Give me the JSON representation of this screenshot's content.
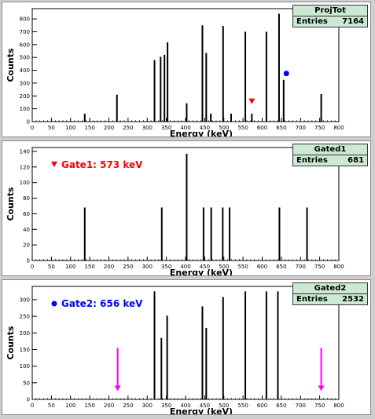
{
  "panels": [
    {
      "stats": {
        "name": "ProjTot",
        "entries_label": "Entries",
        "entries": "7164"
      },
      "annotation": null,
      "chart_data": {
        "type": "bar",
        "xlabel": "Energy (keV)",
        "ylabel": "Counts",
        "xlim": [
          0,
          800
        ],
        "ylim": [
          0,
          880
        ],
        "xticks": [
          0,
          50,
          100,
          150,
          200,
          250,
          300,
          350,
          400,
          450,
          500,
          550,
          600,
          650,
          700,
          750,
          800
        ],
        "yticks": [
          0,
          100,
          200,
          300,
          400,
          500,
          600,
          700,
          800
        ],
        "peaks": [
          {
            "x": 137,
            "y": 62
          },
          {
            "x": 221,
            "y": 210
          },
          {
            "x": 319,
            "y": 480
          },
          {
            "x": 335,
            "y": 505
          },
          {
            "x": 345,
            "y": 520
          },
          {
            "x": 353,
            "y": 618
          },
          {
            "x": 403,
            "y": 143
          },
          {
            "x": 444,
            "y": 750
          },
          {
            "x": 454,
            "y": 535
          },
          {
            "x": 466,
            "y": 62
          },
          {
            "x": 498,
            "y": 745
          },
          {
            "x": 519,
            "y": 62
          },
          {
            "x": 556,
            "y": 700
          },
          {
            "x": 573,
            "y": 62
          },
          {
            "x": 611,
            "y": 700
          },
          {
            "x": 644,
            "y": 840
          },
          {
            "x": 656,
            "y": 325
          },
          {
            "x": 754,
            "y": 215
          }
        ],
        "markers": [
          {
            "type": "triangle-down",
            "x": 573,
            "y": 155,
            "color": "#ff0000"
          },
          {
            "type": "circle",
            "x": 663,
            "y": 375,
            "color": "#0000ff"
          }
        ]
      }
    },
    {
      "stats": {
        "name": "Gated1",
        "entries_label": "Entries",
        "entries": "681"
      },
      "annotation": {
        "text": "Gate1: 573 keV",
        "color": "#ff0000",
        "marker": "triangle-down"
      },
      "chart_data": {
        "type": "bar",
        "xlabel": "Energy (keV)",
        "ylabel": "Counts",
        "xlim": [
          0,
          800
        ],
        "ylim": [
          0,
          145
        ],
        "xticks": [
          0,
          50,
          100,
          150,
          200,
          250,
          300,
          350,
          400,
          450,
          500,
          550,
          600,
          650,
          700,
          750,
          800
        ],
        "yticks": [
          0,
          20,
          40,
          60,
          80,
          100,
          120,
          140
        ],
        "peaks": [
          {
            "x": 137,
            "y": 68
          },
          {
            "x": 338,
            "y": 68
          },
          {
            "x": 403,
            "y": 137
          },
          {
            "x": 447,
            "y": 68
          },
          {
            "x": 467,
            "y": 68
          },
          {
            "x": 497,
            "y": 68
          },
          {
            "x": 515,
            "y": 68
          },
          {
            "x": 645,
            "y": 68
          },
          {
            "x": 717,
            "y": 68
          }
        ],
        "markers": []
      }
    },
    {
      "stats": {
        "name": "Gated2",
        "entries_label": "Entries",
        "entries": "2532"
      },
      "annotation": {
        "text": "Gate2: 656 keV",
        "color": "#0000ff",
        "marker": "circle"
      },
      "chart_data": {
        "type": "bar",
        "xlabel": "Energy (keV)",
        "ylabel": "Counts",
        "xlim": [
          0,
          800
        ],
        "ylim": [
          0,
          340
        ],
        "xticks": [
          0,
          50,
          100,
          150,
          200,
          250,
          300,
          350,
          400,
          450,
          500,
          550,
          600,
          650,
          700,
          750,
          800
        ],
        "yticks": [
          0,
          50,
          100,
          150,
          200,
          250,
          300
        ],
        "peaks": [
          {
            "x": 319,
            "y": 325
          },
          {
            "x": 337,
            "y": 185
          },
          {
            "x": 352,
            "y": 252
          },
          {
            "x": 444,
            "y": 280
          },
          {
            "x": 454,
            "y": 215
          },
          {
            "x": 498,
            "y": 308
          },
          {
            "x": 556,
            "y": 325
          },
          {
            "x": 611,
            "y": 325
          },
          {
            "x": 641,
            "y": 325
          }
        ],
        "markers": [],
        "arrows": [
          {
            "x": 223,
            "y_top": 155,
            "y_bottom": 25,
            "color": "#ff00ff"
          },
          {
            "x": 754,
            "y_top": 155,
            "y_bottom": 25,
            "color": "#ff00ff"
          }
        ]
      }
    }
  ]
}
